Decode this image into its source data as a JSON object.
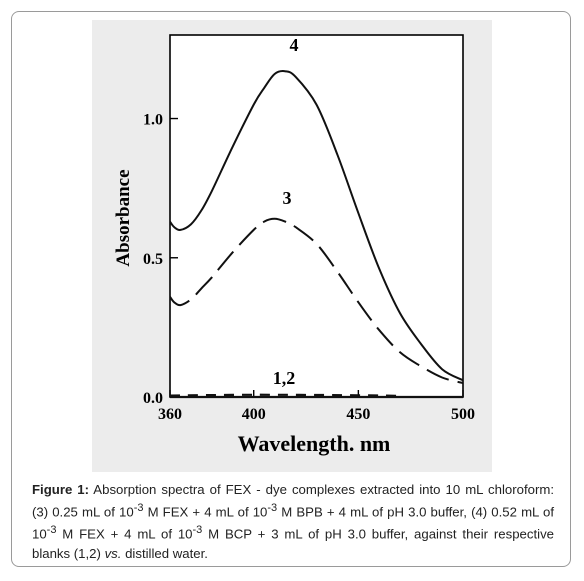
{
  "chart_data": {
    "type": "line",
    "xlabel": "Wavelength. nm",
    "ylabel": "Absorbance",
    "xlim": [
      360,
      500
    ],
    "ylim": [
      0,
      1.3
    ],
    "x_ticks": [
      "360",
      "400",
      "450",
      "500"
    ],
    "y_ticks": [
      "0.0",
      "0.5",
      "1.0"
    ],
    "series": [
      {
        "label": "4",
        "style": "solid",
        "x": [
          360,
          362,
          365,
          370,
          375,
          380,
          390,
          400,
          405,
          410,
          415,
          420,
          430,
          440,
          450,
          460,
          470,
          480,
          490,
          500
        ],
        "y": [
          0.63,
          0.61,
          0.6,
          0.62,
          0.67,
          0.74,
          0.9,
          1.05,
          1.11,
          1.16,
          1.17,
          1.15,
          1.05,
          0.87,
          0.66,
          0.46,
          0.3,
          0.19,
          0.1,
          0.06
        ]
      },
      {
        "label": "3",
        "style": "dashed",
        "x": [
          360,
          362,
          365,
          370,
          375,
          380,
          390,
          400,
          405,
          410,
          415,
          420,
          430,
          440,
          450,
          460,
          470,
          480,
          490,
          500
        ],
        "y": [
          0.36,
          0.34,
          0.33,
          0.35,
          0.39,
          0.43,
          0.52,
          0.6,
          0.63,
          0.64,
          0.63,
          0.61,
          0.55,
          0.45,
          0.34,
          0.24,
          0.16,
          0.11,
          0.07,
          0.05
        ]
      },
      {
        "label": "1,2",
        "style": "solid",
        "x": [
          360,
          400,
          450,
          500
        ],
        "y": [
          0.0,
          0.0,
          0.0,
          0.0
        ]
      },
      {
        "label": "1,2",
        "style": "dashed",
        "x": [
          360,
          400,
          450,
          470
        ],
        "y": [
          0.005,
          0.008,
          0.006,
          0.004
        ]
      }
    ],
    "annotations": [
      "4",
      "3",
      "1,2"
    ]
  },
  "caption": {
    "label": "Figure 1:",
    "text_part1": " Absorption spectra of FEX - dye complexes extracted into 10 mL chloroform: (3) 0.25 mL of 10",
    "sup1": "-3",
    "text_part2": " M FEX + 4 mL of 10",
    "sup2": "-3",
    "text_part3": " M BPB + 4 mL of pH 3.0 buffer, (4) 0.52 mL of 10",
    "sup3": "-3",
    "text_part4": " M FEX + 4 mL of 10",
    "sup4": "-3",
    "text_part5": " M BCP + 3 mL of pH 3.0 buffer, against their respective blanks (1,2) ",
    "vs": "vs.",
    "text_part6": " distilled water."
  }
}
